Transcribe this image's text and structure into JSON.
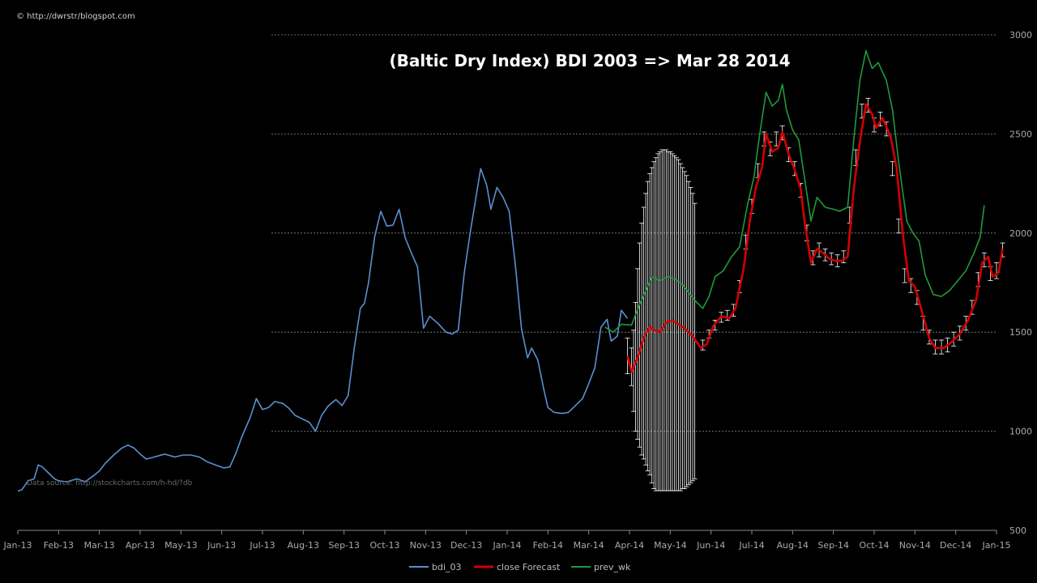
{
  "credit": "© http://dwrstr/blogspot.com",
  "source_note": "Data source: http://stockcharts.com/h-hd/?db",
  "colors": {
    "background": "#000000",
    "bdi": "#5b8fd0",
    "forecast": "#d40000",
    "prev_wk": "#1f9a3c",
    "error_bars": "#ffffff",
    "grid": "#8a8a8a",
    "axis": "#8a8a8a"
  },
  "chart_data": {
    "type": "line",
    "title": "(Baltic Dry Index) BDI 2003 => Mar 28 2014",
    "xlabel": "",
    "ylabel": "",
    "ylim": [
      500,
      3000
    ],
    "yticks": [
      500,
      1000,
      1500,
      2000,
      2500,
      3000
    ],
    "grid": "horizontal dashed",
    "legend_position": "bottom",
    "x_categories": [
      "Jan-13",
      "Feb-13",
      "Mar-13",
      "Apr-13",
      "May-13",
      "Jun-13",
      "Jul-13",
      "Aug-13",
      "Sep-13",
      "Oct-13",
      "Nov-13",
      "Dec-13",
      "Jan-14",
      "Feb-14",
      "Mar-14",
      "Apr-14",
      "May-14",
      "Jun-14",
      "Jul-14",
      "Aug-14",
      "Sep-14",
      "Oct-14",
      "Nov-14",
      "Dec-14",
      "Jan-15"
    ],
    "series": [
      {
        "name": "bdi_03",
        "color": "#5b8fd0",
        "points": [
          [
            0,
            698
          ],
          [
            0.1,
            705
          ],
          [
            0.25,
            750
          ],
          [
            0.4,
            760
          ],
          [
            0.5,
            830
          ],
          [
            0.6,
            820
          ],
          [
            0.75,
            790
          ],
          [
            0.9,
            760
          ],
          [
            1.0,
            750
          ],
          [
            1.2,
            745
          ],
          [
            1.45,
            760
          ],
          [
            1.65,
            745
          ],
          [
            1.85,
            775
          ],
          [
            2.0,
            800
          ],
          [
            2.15,
            840
          ],
          [
            2.35,
            880
          ],
          [
            2.55,
            915
          ],
          [
            2.7,
            930
          ],
          [
            2.85,
            915
          ],
          [
            3.0,
            885
          ],
          [
            3.15,
            860
          ],
          [
            3.35,
            870
          ],
          [
            3.6,
            885
          ],
          [
            3.85,
            870
          ],
          [
            4.05,
            880
          ],
          [
            4.25,
            880
          ],
          [
            4.45,
            870
          ],
          [
            4.65,
            845
          ],
          [
            4.85,
            830
          ],
          [
            5.05,
            815
          ],
          [
            5.2,
            820
          ],
          [
            5.35,
            890
          ],
          [
            5.5,
            975
          ],
          [
            5.7,
            1070
          ],
          [
            5.85,
            1165
          ],
          [
            6.0,
            1110
          ],
          [
            6.15,
            1120
          ],
          [
            6.3,
            1150
          ],
          [
            6.5,
            1140
          ],
          [
            6.65,
            1115
          ],
          [
            6.8,
            1080
          ],
          [
            6.95,
            1065
          ],
          [
            7.15,
            1045
          ],
          [
            7.3,
            1000
          ],
          [
            7.45,
            1080
          ],
          [
            7.6,
            1125
          ],
          [
            7.8,
            1160
          ],
          [
            7.95,
            1130
          ],
          [
            8.1,
            1180
          ],
          [
            8.25,
            1420
          ],
          [
            8.4,
            1620
          ],
          [
            8.5,
            1645
          ],
          [
            8.6,
            1750
          ],
          [
            8.75,
            1980
          ],
          [
            8.9,
            2110
          ],
          [
            9.05,
            2035
          ],
          [
            9.2,
            2040
          ],
          [
            9.35,
            2120
          ],
          [
            9.5,
            1975
          ],
          [
            9.65,
            1900
          ],
          [
            9.8,
            1830
          ],
          [
            9.95,
            1520
          ],
          [
            10.1,
            1580
          ],
          [
            10.3,
            1545
          ],
          [
            10.5,
            1500
          ],
          [
            10.65,
            1490
          ],
          [
            10.8,
            1510
          ],
          [
            10.95,
            1800
          ],
          [
            11.1,
            2010
          ],
          [
            11.25,
            2200
          ],
          [
            11.35,
            2325
          ],
          [
            11.5,
            2240
          ],
          [
            11.6,
            2120
          ],
          [
            11.75,
            2230
          ],
          [
            11.9,
            2180
          ],
          [
            12.05,
            2110
          ],
          [
            12.2,
            1840
          ],
          [
            12.35,
            1520
          ],
          [
            12.5,
            1370
          ],
          [
            12.6,
            1420
          ],
          [
            12.75,
            1360
          ],
          [
            12.9,
            1210
          ],
          [
            13.0,
            1120
          ],
          [
            13.15,
            1095
          ],
          [
            13.35,
            1090
          ],
          [
            13.5,
            1095
          ],
          [
            13.7,
            1135
          ],
          [
            13.85,
            1165
          ],
          [
            14.0,
            1240
          ],
          [
            14.15,
            1320
          ],
          [
            14.3,
            1525
          ],
          [
            14.45,
            1565
          ],
          [
            14.55,
            1455
          ],
          [
            14.7,
            1480
          ],
          [
            14.8,
            1610
          ],
          [
            14.95,
            1570
          ]
        ]
      },
      {
        "name": "close Forecast",
        "color": "#d40000",
        "points": [
          [
            14.95,
            1380
          ],
          [
            15.05,
            1300
          ],
          [
            15.2,
            1370
          ],
          [
            15.35,
            1470
          ],
          [
            15.5,
            1530
          ],
          [
            15.6,
            1510
          ],
          [
            15.75,
            1500
          ],
          [
            15.9,
            1550
          ],
          [
            16.05,
            1560
          ],
          [
            16.2,
            1540
          ],
          [
            16.35,
            1520
          ],
          [
            16.55,
            1480
          ],
          [
            16.75,
            1420
          ],
          [
            16.9,
            1440
          ],
          [
            17.05,
            1530
          ],
          [
            17.25,
            1580
          ],
          [
            17.45,
            1570
          ],
          [
            17.6,
            1620
          ],
          [
            17.8,
            1820
          ],
          [
            17.95,
            2060
          ],
          [
            18.1,
            2230
          ],
          [
            18.25,
            2330
          ],
          [
            18.35,
            2500
          ],
          [
            18.5,
            2410
          ],
          [
            18.65,
            2430
          ],
          [
            18.75,
            2510
          ],
          [
            18.9,
            2400
          ],
          [
            19.05,
            2320
          ],
          [
            19.2,
            2220
          ],
          [
            19.3,
            2050
          ],
          [
            19.45,
            1850
          ],
          [
            19.6,
            1920
          ],
          [
            19.75,
            1900
          ],
          [
            19.9,
            1870
          ],
          [
            20.05,
            1860
          ],
          [
            20.2,
            1860
          ],
          [
            20.35,
            1880
          ],
          [
            20.5,
            2220
          ],
          [
            20.65,
            2460
          ],
          [
            20.8,
            2650
          ],
          [
            20.95,
            2600
          ],
          [
            21.05,
            2530
          ],
          [
            21.2,
            2580
          ],
          [
            21.4,
            2490
          ],
          [
            21.55,
            2330
          ],
          [
            21.7,
            2000
          ],
          [
            21.85,
            1760
          ],
          [
            22.0,
            1730
          ],
          [
            22.15,
            1620
          ],
          [
            22.35,
            1470
          ],
          [
            22.5,
            1420
          ],
          [
            22.7,
            1420
          ],
          [
            22.9,
            1450
          ],
          [
            23.1,
            1490
          ],
          [
            23.3,
            1560
          ],
          [
            23.5,
            1660
          ],
          [
            23.65,
            1850
          ],
          [
            23.8,
            1880
          ],
          [
            23.9,
            1780
          ],
          [
            24.05,
            1800
          ],
          [
            24.15,
            1920
          ]
        ]
      },
      {
        "name": "prev_wk",
        "color": "#1f9a3c",
        "points": [
          [
            14.4,
            1525
          ],
          [
            14.6,
            1500
          ],
          [
            14.8,
            1540
          ],
          [
            15.05,
            1535
          ],
          [
            15.25,
            1640
          ],
          [
            15.45,
            1730
          ],
          [
            15.55,
            1780
          ],
          [
            15.75,
            1760
          ],
          [
            15.95,
            1780
          ],
          [
            16.1,
            1770
          ],
          [
            16.3,
            1740
          ],
          [
            16.45,
            1700
          ],
          [
            16.65,
            1650
          ],
          [
            16.8,
            1620
          ],
          [
            16.95,
            1680
          ],
          [
            17.1,
            1780
          ],
          [
            17.3,
            1810
          ],
          [
            17.5,
            1880
          ],
          [
            17.7,
            1930
          ],
          [
            17.9,
            2150
          ],
          [
            18.05,
            2280
          ],
          [
            18.2,
            2510
          ],
          [
            18.35,
            2710
          ],
          [
            18.5,
            2640
          ],
          [
            18.65,
            2670
          ],
          [
            18.75,
            2750
          ],
          [
            18.85,
            2620
          ],
          [
            19.0,
            2520
          ],
          [
            19.15,
            2470
          ],
          [
            19.3,
            2270
          ],
          [
            19.45,
            2060
          ],
          [
            19.6,
            2180
          ],
          [
            19.8,
            2130
          ],
          [
            20.0,
            2120
          ],
          [
            20.15,
            2110
          ],
          [
            20.35,
            2130
          ],
          [
            20.5,
            2470
          ],
          [
            20.65,
            2770
          ],
          [
            20.8,
            2920
          ],
          [
            20.95,
            2830
          ],
          [
            21.1,
            2860
          ],
          [
            21.3,
            2770
          ],
          [
            21.45,
            2620
          ],
          [
            21.6,
            2360
          ],
          [
            21.8,
            2060
          ],
          [
            21.95,
            2000
          ],
          [
            22.1,
            1960
          ],
          [
            22.25,
            1790
          ],
          [
            22.45,
            1690
          ],
          [
            22.65,
            1680
          ],
          [
            22.85,
            1710
          ],
          [
            23.05,
            1760
          ],
          [
            23.25,
            1810
          ],
          [
            23.45,
            1900
          ],
          [
            23.6,
            1980
          ],
          [
            23.7,
            2140
          ]
        ]
      }
    ],
    "error_bars": [
      [
        14.95,
        1290,
        1470
      ],
      [
        15.05,
        1230,
        1420
      ],
      [
        15.1,
        1100,
        1510
      ],
      [
        15.15,
        1000,
        1650
      ],
      [
        15.2,
        960,
        1820
      ],
      [
        15.25,
        920,
        1950
      ],
      [
        15.3,
        880,
        2050
      ],
      [
        15.35,
        860,
        2130
      ],
      [
        15.4,
        830,
        2200
      ],
      [
        15.45,
        800,
        2260
      ],
      [
        15.5,
        780,
        2300
      ],
      [
        15.55,
        740,
        2330
      ],
      [
        15.6,
        710,
        2360
      ],
      [
        15.65,
        700,
        2380
      ],
      [
        15.7,
        700,
        2400
      ],
      [
        15.75,
        700,
        2410
      ],
      [
        15.8,
        700,
        2420
      ],
      [
        15.85,
        700,
        2420
      ],
      [
        15.9,
        700,
        2420
      ],
      [
        15.95,
        700,
        2410
      ],
      [
        16.0,
        700,
        2410
      ],
      [
        16.05,
        700,
        2400
      ],
      [
        16.1,
        700,
        2390
      ],
      [
        16.15,
        700,
        2380
      ],
      [
        16.2,
        700,
        2370
      ],
      [
        16.25,
        700,
        2350
      ],
      [
        16.3,
        710,
        2330
      ],
      [
        16.35,
        710,
        2310
      ],
      [
        16.4,
        720,
        2290
      ],
      [
        16.45,
        730,
        2260
      ],
      [
        16.5,
        740,
        2230
      ],
      [
        16.55,
        750,
        2200
      ],
      [
        16.6,
        760,
        2150
      ],
      [
        16.8,
        1410,
        1460
      ],
      [
        16.95,
        1470,
        1510
      ],
      [
        17.1,
        1510,
        1560
      ],
      [
        17.25,
        1550,
        1600
      ],
      [
        17.4,
        1560,
        1610
      ],
      [
        17.55,
        1580,
        1640
      ],
      [
        17.7,
        1700,
        1760
      ],
      [
        17.85,
        1920,
        1990
      ],
      [
        18.0,
        2100,
        2170
      ],
      [
        18.15,
        2280,
        2350
      ],
      [
        18.3,
        2440,
        2510
      ],
      [
        18.45,
        2390,
        2460
      ],
      [
        18.6,
        2440,
        2510
      ],
      [
        18.75,
        2470,
        2540
      ],
      [
        18.9,
        2360,
        2430
      ],
      [
        19.05,
        2290,
        2360
      ],
      [
        19.2,
        2180,
        2250
      ],
      [
        19.35,
        1960,
        2040
      ],
      [
        19.5,
        1840,
        1910
      ],
      [
        19.65,
        1880,
        1950
      ],
      [
        19.8,
        1860,
        1920
      ],
      [
        19.95,
        1840,
        1900
      ],
      [
        20.1,
        1830,
        1890
      ],
      [
        20.25,
        1850,
        1910
      ],
      [
        20.4,
        2050,
        2130
      ],
      [
        20.55,
        2340,
        2420
      ],
      [
        20.7,
        2580,
        2650
      ],
      [
        20.85,
        2610,
        2680
      ],
      [
        21.0,
        2510,
        2580
      ],
      [
        21.15,
        2540,
        2610
      ],
      [
        21.3,
        2490,
        2560
      ],
      [
        21.45,
        2290,
        2360
      ],
      [
        21.6,
        2000,
        2070
      ],
      [
        21.75,
        1750,
        1820
      ],
      [
        21.9,
        1700,
        1770
      ],
      [
        22.05,
        1640,
        1710
      ],
      [
        22.2,
        1510,
        1580
      ],
      [
        22.35,
        1440,
        1510
      ],
      [
        22.5,
        1390,
        1460
      ],
      [
        22.65,
        1390,
        1460
      ],
      [
        22.8,
        1400,
        1470
      ],
      [
        22.95,
        1430,
        1500
      ],
      [
        23.1,
        1460,
        1530
      ],
      [
        23.25,
        1510,
        1580
      ],
      [
        23.4,
        1590,
        1660
      ],
      [
        23.55,
        1730,
        1800
      ],
      [
        23.7,
        1830,
        1900
      ],
      [
        23.85,
        1760,
        1830
      ],
      [
        24.0,
        1770,
        1850
      ],
      [
        24.15,
        1880,
        1950
      ]
    ]
  }
}
